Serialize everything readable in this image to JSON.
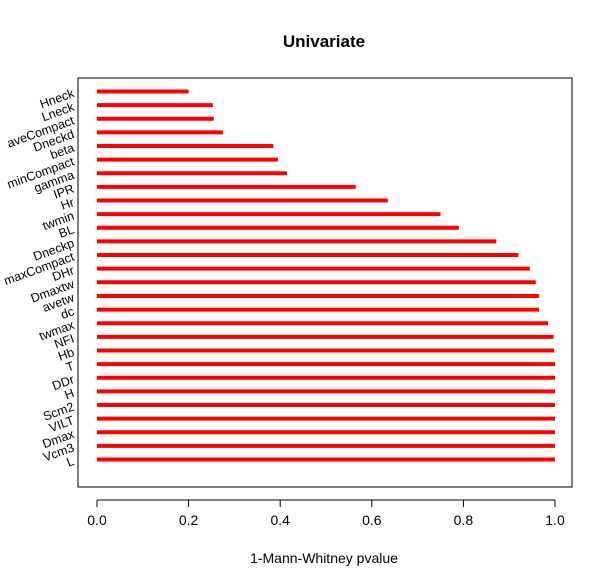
{
  "chart_data": {
    "type": "bar",
    "orientation": "horizontal",
    "title": "Univariate",
    "xlabel": "1-Mann-Whitney pvalue",
    "ylabel": "",
    "xlim": [
      0,
      1
    ],
    "xticks": [
      "0.0",
      "0.2",
      "0.4",
      "0.6",
      "0.8",
      "1.0"
    ],
    "categories": [
      "L",
      "Vcm3",
      "Dmax",
      "VILT",
      "Scm2",
      "H",
      "DDr",
      "T",
      "Hb",
      "NFI",
      "twmax",
      "dc",
      "avetw",
      "Dmaxtw",
      "DHr",
      "maxCompact",
      "Dneckp",
      "BL",
      "twmin",
      "Hr",
      "IPR",
      "gamma",
      "minCompact",
      "beta",
      "Dneckd",
      "aveCompact",
      "Lneck",
      "Hneck"
    ],
    "values": [
      1.0,
      1.0,
      1.0,
      1.0,
      1.0,
      1.0,
      1.0,
      1.0,
      0.998,
      0.997,
      0.985,
      0.965,
      0.965,
      0.958,
      0.945,
      0.92,
      0.872,
      0.79,
      0.75,
      0.635,
      0.565,
      0.415,
      0.395,
      0.385,
      0.275,
      0.255,
      0.253,
      0.2
    ],
    "bar_color": "#ff0000"
  }
}
